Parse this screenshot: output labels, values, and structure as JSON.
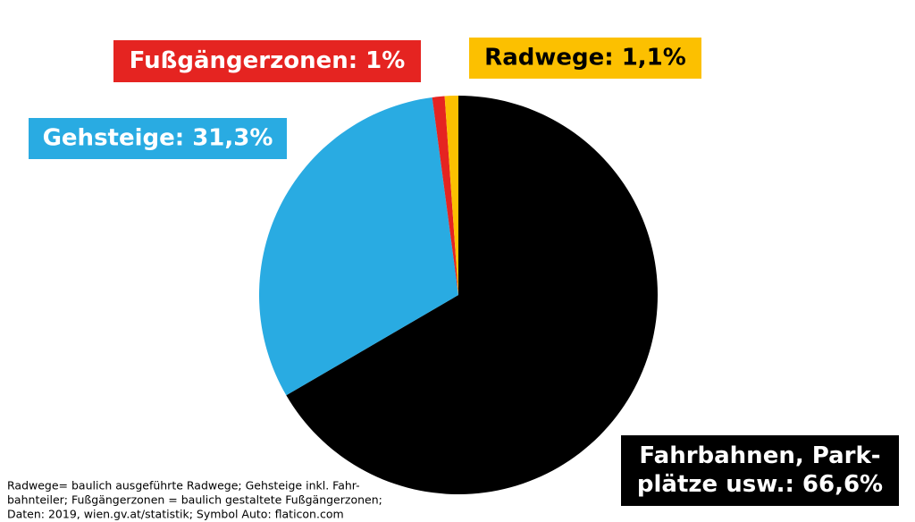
{
  "chart_data": {
    "type": "pie",
    "values": [
      66.6,
      31.3,
      1,
      1.1
    ],
    "value_labels": [
      [
        "Fahrbahnen, Park-",
        "plätze usw.: 66,6%"
      ],
      "Gehsteige: 31,3%",
      "Fußgängerzonen: 1%",
      "Radwege: 1,1%"
    ],
    "colors": [
      "#000000",
      "#29abe2",
      "#e52421",
      "#fcc000"
    ],
    "note": [
      "Radwege= baulich ausgeführte Radwege; Gehsteige inkl. Fahr-",
      "bahnteiler; Fußgängerzonen = baulich gestaltete Fußgängerzonen;",
      "Daten: 2019, wien.gv.at/statistik; Symbol Auto: flaticon.com"
    ]
  }
}
